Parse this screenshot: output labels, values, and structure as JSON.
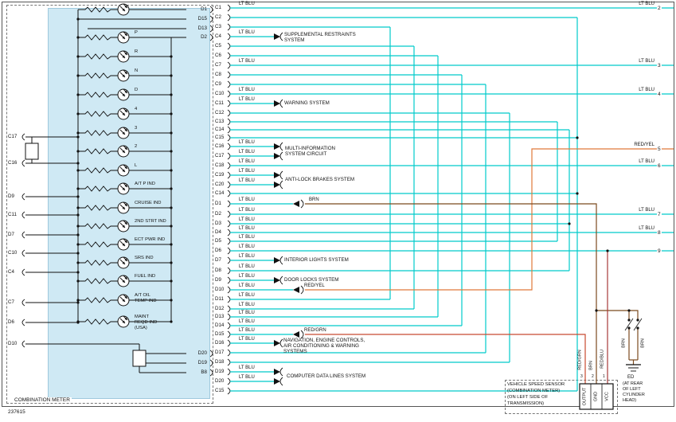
{
  "page": {
    "footer_number": "237615"
  },
  "meter": {
    "title": "COMBINATION METER",
    "left_pins": [
      "C17",
      "C16",
      "D9",
      "C11",
      "D7",
      "C10",
      "C4",
      "C7",
      "D6",
      "D10"
    ],
    "top_right_pins": [
      "D1",
      "D15",
      "D13",
      "D2"
    ],
    "bottom_right_pins": [
      "D20",
      "D19",
      "B8"
    ],
    "lamps": [
      "P",
      "R",
      "N",
      "D",
      "4",
      "3",
      "2",
      "L",
      "A/T P IND",
      "CRUISE IND",
      "2ND STRT IND",
      "ECT PWR IND",
      "SRS IND",
      "FUEL IND",
      "A/T OIL\nTEMP IND",
      "MAINT\nREQD IND\n(USA)"
    ]
  },
  "connector_rows": [
    {
      "pin": "C1",
      "wire": "LT BLU"
    },
    {
      "pin": "C2",
      "wire": ""
    },
    {
      "pin": "C3",
      "wire": ""
    },
    {
      "pin": "C4",
      "wire": "LT BLU"
    },
    {
      "pin": "C5",
      "wire": ""
    },
    {
      "pin": "C6",
      "wire": ""
    },
    {
      "pin": "C7",
      "wire": "LT BLU"
    },
    {
      "pin": "C8",
      "wire": ""
    },
    {
      "pin": "C9",
      "wire": ""
    },
    {
      "pin": "C10",
      "wire": "LT BLU"
    },
    {
      "pin": "C11",
      "wire": "LT BLU"
    },
    {
      "pin": "C12",
      "wire": ""
    },
    {
      "pin": "C13",
      "wire": ""
    },
    {
      "pin": "C14",
      "wire": ""
    },
    {
      "pin": "C15",
      "wire": ""
    },
    {
      "pin": "C16",
      "wire": "LT BLU"
    },
    {
      "pin": "C17",
      "wire": "LT BLU"
    },
    {
      "pin": "C18",
      "wire": "LT BLU"
    },
    {
      "pin": "C19",
      "wire": "LT BLU"
    },
    {
      "pin": "C20",
      "wire": "LT BLU"
    },
    {
      "pin": "C14",
      "wire": ""
    },
    {
      "pin": "D1",
      "wire": "LT BLU",
      "extra": "BRN"
    },
    {
      "pin": "D2",
      "wire": "LT BLU"
    },
    {
      "pin": "D3",
      "wire": "LT BLU"
    },
    {
      "pin": "D4",
      "wire": "LT BLU"
    },
    {
      "pin": "D5",
      "wire": "LT BLU"
    },
    {
      "pin": "D6",
      "wire": "LT BLU"
    },
    {
      "pin": "D7",
      "wire": "LT BLU"
    },
    {
      "pin": "D8",
      "wire": "LT BLU"
    },
    {
      "pin": "D9",
      "wire": "LT BLU"
    },
    {
      "pin": "D10",
      "wire": "LT BLU",
      "extra": "RED/YEL"
    },
    {
      "pin": "D11",
      "wire": "LT BLU"
    },
    {
      "pin": "D12",
      "wire": "LT BLU"
    },
    {
      "pin": "D13",
      "wire": "LT BLU"
    },
    {
      "pin": "D14",
      "wire": "LT BLU"
    },
    {
      "pin": "D15",
      "wire": "LT BLU",
      "extra": "RED/GRN"
    },
    {
      "pin": "D16",
      "wire": "LT BLU"
    },
    {
      "pin": "D17",
      "wire": ""
    },
    {
      "pin": "D18",
      "wire": ""
    },
    {
      "pin": "D19",
      "wire": "LT BLU"
    },
    {
      "pin": "D20",
      "wire": "LT BLU"
    },
    {
      "pin": "C15",
      "wire": ""
    }
  ],
  "systems": {
    "srs": "SUPPLEMENTAL RESTRAINTS\nSYSTEM",
    "warning": "WARNING SYSTEM",
    "multi_info": "MULTI-INFORMATION\nSYSTEM CIRCUIT",
    "abs": "ANTI-LOCK BRAKES SYSTEM",
    "interior": "INTERIOR LIGHTS SYSTEM",
    "door": "DOOR LOCKS SYSTEM",
    "nav": "NAVIGATION, ENGINE CONTROLS,\nAIR CONDITIONING & WARNING\nSYSTEMS",
    "data": "COMPUTER DATA LINES SYSTEM"
  },
  "right_refs": [
    {
      "label": "LT BLU",
      "num": "2"
    },
    {
      "label": "LT BLU",
      "num": "3"
    },
    {
      "label": "LT BLU",
      "num": "4"
    },
    {
      "label": "RED/YEL",
      "num": "5"
    },
    {
      "label": "LT BLU",
      "num": "6"
    },
    {
      "label": "LT BLU",
      "num": "7"
    },
    {
      "label": "LT BLU",
      "num": "8"
    },
    {
      "label": "",
      "num": "9"
    }
  ],
  "sensor": {
    "label_lines": [
      "VEHICLE SPEED SENSOR",
      "(COMBINATION METER)",
      "(ON LEFT SIDE OF",
      "TRANSMISSION)"
    ],
    "pins": [
      "OUTPUT",
      "GND",
      "VCC"
    ],
    "pin_numbers": [
      "3",
      "2",
      "1"
    ],
    "wire_labels": [
      "RED/GRN",
      "BRN",
      "RED/BLU"
    ]
  },
  "ground": {
    "name": "ED",
    "location_lines": [
      "(AT REAR",
      "OF LEFT",
      "CYLINDER",
      "HEAD)"
    ],
    "wire_labels": [
      "BRN",
      "BRN"
    ]
  },
  "colors": {
    "cyan": "#00CBCB",
    "brown": "#7B4A1E",
    "red_yel": "#E0793A",
    "red_grn": "#C84A30",
    "red_blu": "#A83838",
    "panel": "#CFE9F4"
  }
}
